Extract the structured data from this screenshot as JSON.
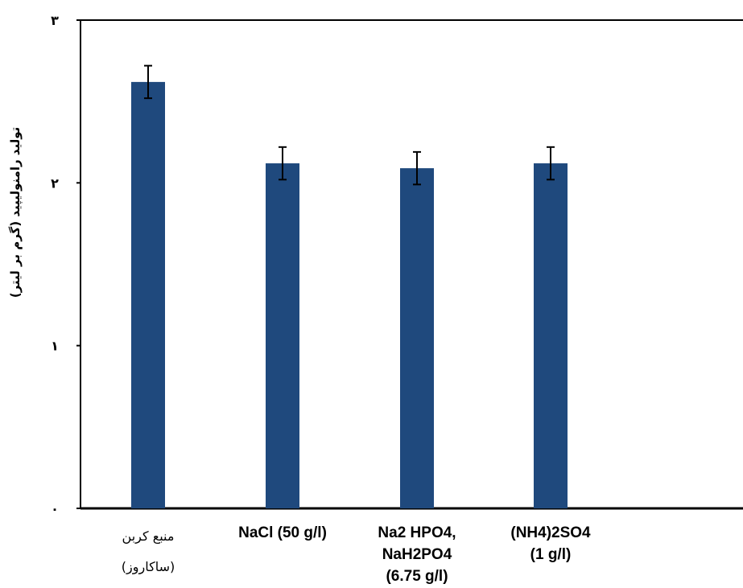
{
  "chart_data": {
    "type": "bar",
    "ylabel": "تولید رامنولیپید (گرم بر لیتر)",
    "xlabel": "",
    "ylim": [
      0,
      3
    ],
    "yticks": [
      {
        "value": 0,
        "label": "۰"
      },
      {
        "value": 1,
        "label": "۱"
      },
      {
        "value": 2,
        "label": "۲"
      },
      {
        "value": 3,
        "label": "۳"
      }
    ],
    "categories": [
      {
        "lines": [
          "منبع کربن",
          "(ساکاروز)"
        ]
      },
      {
        "lines": [
          "NaCl (50 g/l)"
        ]
      },
      {
        "lines": [
          "Na2 HPO4,",
          "NaH2PO4",
          "(6.75 g/l)"
        ]
      },
      {
        "lines": [
          "(NH4)2SO4",
          "(1 g/l)"
        ]
      }
    ],
    "values": [
      2.62,
      2.12,
      2.09,
      2.12
    ],
    "errors": [
      0.1,
      0.1,
      0.1,
      0.1
    ],
    "bar_color": "#1f497d",
    "grid": false,
    "legend": "none"
  }
}
